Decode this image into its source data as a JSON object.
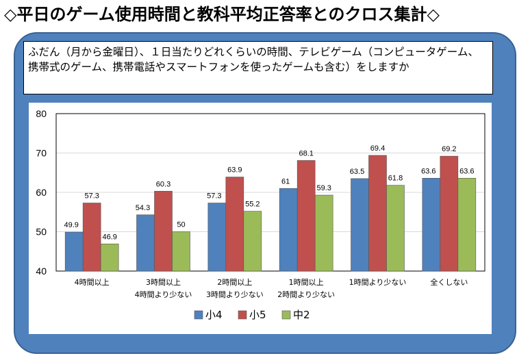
{
  "title": "◇平日のゲーム使用時間と教科平均正答率とのクロス集計◇",
  "question": "ふだん（月から金曜日）、１日当たりどれくらいの時間、テレビゲーム（コンピュータゲーム、携帯式のゲーム、携帯電話やスマートフォンを使ったゲームも含む）をしますか",
  "colors": {
    "panel": "#4f81bd",
    "series": [
      "#4f81bd",
      "#c0504d",
      "#9bbb59"
    ]
  },
  "chart_data": {
    "type": "bar",
    "title": "",
    "xlabel": "",
    "ylabel": "",
    "ylim": [
      40,
      80
    ],
    "yticks": [
      40,
      50,
      60,
      70,
      80
    ],
    "grid": true,
    "legend_position": "bottom",
    "categories": [
      [
        "4時間以上"
      ],
      [
        "3時間以上",
        "4時間より少ない"
      ],
      [
        "2時間以上",
        "3時間より少ない"
      ],
      [
        "1時間以上",
        "2時間より少ない"
      ],
      [
        "1時間より少ない"
      ],
      [
        "全くしない"
      ]
    ],
    "series": [
      {
        "name": "小4",
        "values": [
          49.9,
          54.3,
          57.3,
          61,
          63.5,
          63.6
        ]
      },
      {
        "name": "小5",
        "values": [
          57.3,
          60.3,
          63.9,
          68.1,
          69.4,
          69.2
        ]
      },
      {
        "name": "中2",
        "values": [
          46.9,
          50,
          55.2,
          59.3,
          61.8,
          63.6
        ]
      }
    ]
  }
}
